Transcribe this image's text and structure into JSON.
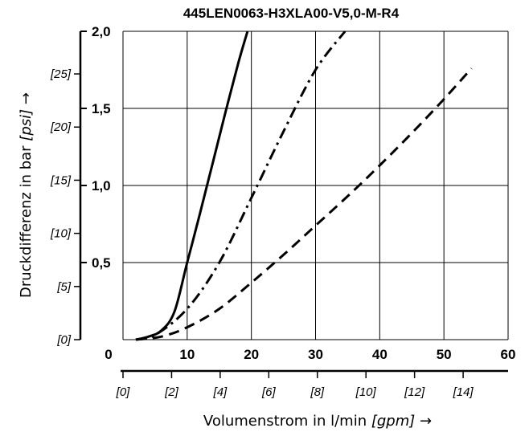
{
  "chart_data": {
    "type": "line",
    "title": "445LEN0063-H3XLA00-V5,0-M-R4",
    "xlabel": {
      "main": "Volumenstrom in l/min ",
      "unit": "[gpm]",
      "arrow": " →"
    },
    "ylabel": {
      "main": "Druckdifferenz in bar ",
      "unit": "[psi]",
      "arrow": " →"
    },
    "xlim": [
      0,
      60
    ],
    "ylim": [
      0,
      2.0
    ],
    "x_ticks": [
      "0",
      "10",
      "20",
      "30",
      "40",
      "50",
      "60"
    ],
    "y_ticks": [
      "0,5",
      "1,0",
      "1,5",
      "2,0"
    ],
    "x2_ticks": [
      "[0]",
      "[2]",
      "[4]",
      "[6]",
      "[8]",
      "[10]",
      "[12]",
      "[14]"
    ],
    "y2_ticks": [
      "[0]",
      "[5]",
      "[10]",
      "[15]",
      "[20]",
      "[25]"
    ],
    "grid": true,
    "series": [
      {
        "style": "solid",
        "x": [
          2,
          4,
          6,
          8,
          10,
          12,
          14,
          16,
          18,
          19.4
        ],
        "y": [
          0.0,
          0.02,
          0.06,
          0.18,
          0.5,
          0.82,
          1.15,
          1.48,
          1.8,
          2.0
        ]
      },
      {
        "style": "dash-dot",
        "x": [
          2,
          5,
          10,
          15,
          20,
          25,
          30,
          34.6
        ],
        "y": [
          0.0,
          0.03,
          0.2,
          0.5,
          0.92,
          1.35,
          1.75,
          2.0
        ]
      },
      {
        "style": "dashed",
        "x": [
          2,
          6,
          10,
          15,
          20,
          25,
          30,
          35,
          40,
          45,
          50,
          54.3
        ],
        "y": [
          0.0,
          0.02,
          0.08,
          0.2,
          0.37,
          0.55,
          0.74,
          0.93,
          1.13,
          1.34,
          1.56,
          1.76
        ]
      }
    ]
  }
}
